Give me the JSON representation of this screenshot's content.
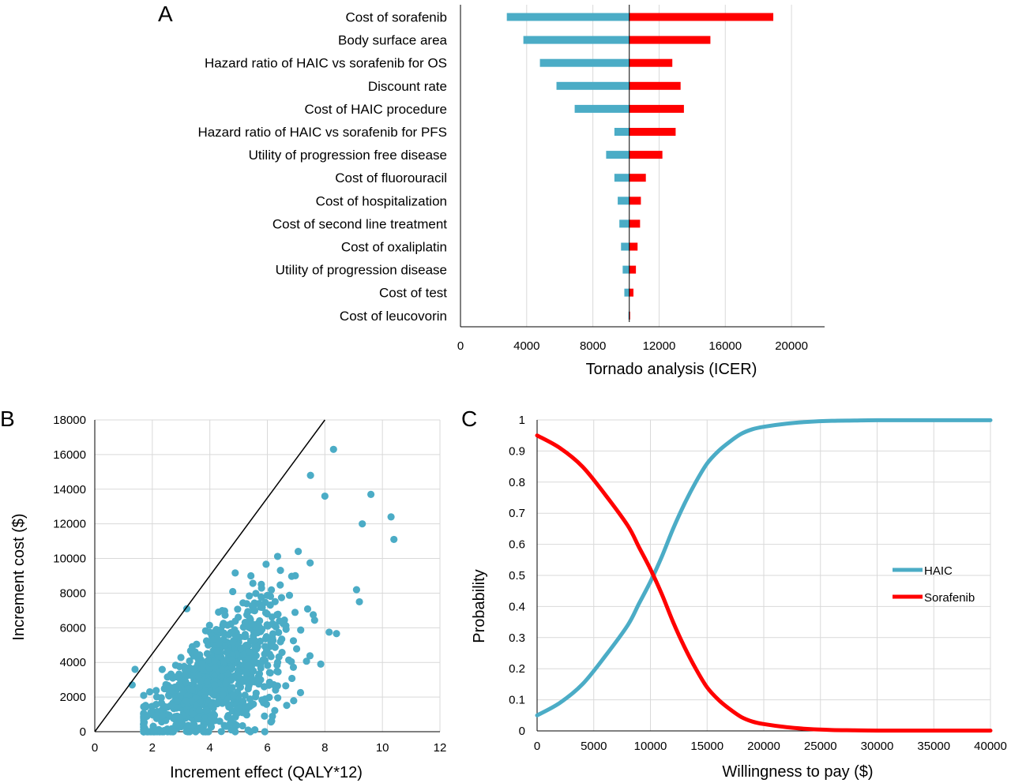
{
  "chart_data": [
    {
      "panel": "A",
      "type": "bar",
      "orientation": "horizontal",
      "xlabel": "Tornado analysis (ICER)",
      "xlim": [
        0,
        22000
      ],
      "xticks": [
        0,
        4000,
        8000,
        12000,
        16000,
        20000
      ],
      "baseline": 10200,
      "colors": {
        "low": "#4bacc6",
        "high": "#ff0000"
      },
      "grid": true,
      "categories": [
        "Cost of sorafenib",
        "Body surface area",
        "Hazard ratio of HAIC vs sorafenib for OS",
        "Discount rate",
        "Cost of HAIC procedure",
        "Hazard ratio of HAIC vs sorafenib for PFS",
        "Utility of progression free disease",
        "Cost of fluorouracil",
        "Cost of hospitalization",
        "Cost of second line treatment",
        "Cost of oxaliplatin",
        "Utility of progression disease",
        "Cost of test",
        "Cost of leucovorin"
      ],
      "series": [
        {
          "low": 2800,
          "high": 18900
        },
        {
          "low": 3800,
          "high": 15100
        },
        {
          "low": 4800,
          "high": 12800
        },
        {
          "low": 5800,
          "high": 13300
        },
        {
          "low": 6900,
          "high": 13500
        },
        {
          "low": 9300,
          "high": 13000
        },
        {
          "low": 8800,
          "high": 12200
        },
        {
          "low": 9300,
          "high": 11200
        },
        {
          "low": 9500,
          "high": 10900
        },
        {
          "low": 9600,
          "high": 10850
        },
        {
          "low": 9700,
          "high": 10700
        },
        {
          "low": 9800,
          "high": 10600
        },
        {
          "low": 9900,
          "high": 10450
        },
        {
          "low": 10150,
          "high": 10250
        }
      ]
    },
    {
      "panel": "B",
      "type": "scatter",
      "xlabel": "Increment effect (QALY*12)",
      "ylabel": "Increment cost ($)",
      "xlim": [
        0,
        12
      ],
      "ylim": [
        0,
        18000
      ],
      "xticks": [
        0,
        2,
        4,
        6,
        8,
        10,
        12
      ],
      "yticks": [
        0,
        2000,
        4000,
        6000,
        8000,
        10000,
        12000,
        14000,
        16000,
        18000
      ],
      "grid": true,
      "point_color": "#4bacc6",
      "threshold_line": {
        "x": [
          0,
          8.0
        ],
        "y": [
          0,
          18000
        ]
      },
      "n_points": 900,
      "distribution": {
        "x_mean": 4.2,
        "x_sd": 1.6,
        "x_min": 1.3,
        "x_max": 10.4,
        "cost_per_effect_mean": 1000,
        "cost_per_effect_sd": 330,
        "y_min": 0,
        "y_max": 16300
      },
      "highlight_points": [
        {
          "x": 8.3,
          "y": 16300
        },
        {
          "x": 7.5,
          "y": 14800
        },
        {
          "x": 8.0,
          "y": 13600
        },
        {
          "x": 9.6,
          "y": 13700
        },
        {
          "x": 10.3,
          "y": 12400
        },
        {
          "x": 10.4,
          "y": 11100
        },
        {
          "x": 9.3,
          "y": 12000
        },
        {
          "x": 3.2,
          "y": 7100
        },
        {
          "x": 1.4,
          "y": 3600
        },
        {
          "x": 1.3,
          "y": 2700
        },
        {
          "x": 9.2,
          "y": 7500
        },
        {
          "x": 5.9,
          "y": 900
        }
      ]
    },
    {
      "panel": "C",
      "type": "line",
      "xlabel": "Willingness to pay ($)",
      "ylabel": "Probability",
      "xlim": [
        0,
        40000
      ],
      "ylim": [
        0,
        1
      ],
      "xticks": [
        0,
        5000,
        10000,
        15000,
        20000,
        25000,
        30000,
        35000,
        40000
      ],
      "yticks": [
        0,
        0.1,
        0.2,
        0.3,
        0.4,
        0.5,
        0.6,
        0.7,
        0.8,
        0.9,
        1
      ],
      "grid": true,
      "legend_position": "right",
      "x": [
        0,
        2000,
        4000,
        6000,
        8000,
        9000,
        10000,
        11000,
        12000,
        13000,
        14000,
        15000,
        16000,
        17000,
        18000,
        19000,
        20000,
        22000,
        24000,
        26000,
        28000,
        30000,
        35000,
        40000
      ],
      "series": [
        {
          "name": "HAIC",
          "color": "#4bacc6",
          "values": [
            0.05,
            0.09,
            0.15,
            0.24,
            0.34,
            0.41,
            0.48,
            0.56,
            0.65,
            0.73,
            0.8,
            0.86,
            0.9,
            0.93,
            0.955,
            0.97,
            0.978,
            0.988,
            0.994,
            0.997,
            0.998,
            0.999,
            0.999,
            0.999
          ]
        },
        {
          "name": "Sorafenib",
          "color": "#ff0000",
          "values": [
            0.95,
            0.91,
            0.85,
            0.76,
            0.66,
            0.59,
            0.52,
            0.44,
            0.35,
            0.27,
            0.2,
            0.14,
            0.1,
            0.07,
            0.045,
            0.03,
            0.022,
            0.012,
            0.006,
            0.003,
            0.002,
            0.001,
            0.001,
            0.001
          ]
        }
      ]
    }
  ]
}
